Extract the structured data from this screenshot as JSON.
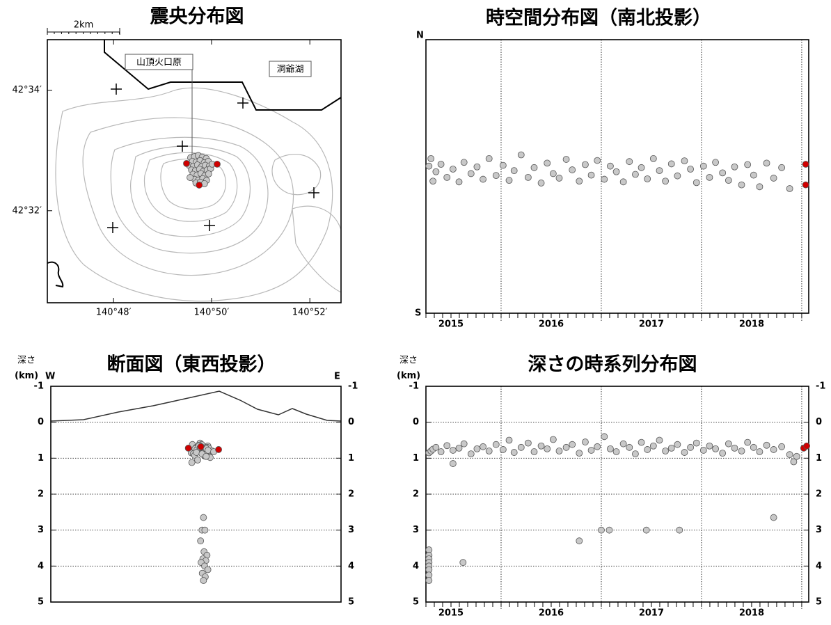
{
  "chart_data": [
    {
      "type": "scatter",
      "title": "震央分布図",
      "scale_bar_label": "2km",
      "annotations": [
        "山頂火口原",
        "洞爺湖"
      ],
      "xlim": [
        140.7775,
        140.8773
      ],
      "ylim": [
        42.5078,
        42.5807
      ],
      "xticks": [
        {
          "value": 140.8,
          "label": "140°48′"
        },
        {
          "value": 140.8333,
          "label": "140°50′"
        },
        {
          "value": 140.8667,
          "label": "140°52′"
        }
      ],
      "yticks": [
        {
          "value": 42.5333,
          "label": "42°32′"
        },
        {
          "value": 42.5667,
          "label": "42°34′"
        }
      ],
      "series": [
        {
          "color": "#c8c8c8",
          "x": [
            140.8262,
            140.8275,
            140.8288,
            140.8301,
            140.8315,
            140.8268,
            140.8281,
            140.8294,
            140.8308,
            140.8322,
            140.8258,
            140.8271,
            140.8285,
            140.8299,
            140.8312,
            140.8326,
            140.8265,
            140.8278,
            140.8292,
            140.8305,
            140.8318,
            140.833,
            140.827,
            140.8284,
            140.8297,
            140.831,
            140.8323,
            140.8276,
            140.8289,
            140.8303,
            140.8316,
            140.828,
            140.8295,
            140.8309,
            140.826,
            140.8335
          ],
          "values": [
            42.548,
            42.5483,
            42.5486,
            42.5481,
            42.5478,
            42.547,
            42.5468,
            42.5472,
            42.5466,
            42.547,
            42.5458,
            42.5456,
            42.546,
            42.5455,
            42.5459,
            42.5457,
            42.5446,
            42.5444,
            42.5448,
            42.5442,
            42.5446,
            42.545,
            42.5434,
            42.5432,
            42.5436,
            42.543,
            42.5435,
            42.542,
            42.5418,
            42.5422,
            42.5417,
            42.541,
            42.5412,
            42.5408,
            42.5425,
            42.5462
          ]
        },
        {
          "color": "#d00000",
          "x": [
            140.8248,
            140.8352,
            140.8291
          ],
          "values": [
            42.5464,
            42.5462,
            42.5404
          ]
        }
      ]
    },
    {
      "type": "scatter",
      "title": "時空間分布図（南北投影）",
      "ylabel_top": "N",
      "ylabel_bottom": "S",
      "xlim": [
        2015.25,
        2019.07
      ],
      "ylim": [
        42.5078,
        42.5807
      ],
      "xticks": [
        {
          "value": 2015.5,
          "label": "2015"
        },
        {
          "value": 2016.5,
          "label": "2016"
        },
        {
          "value": 2017.5,
          "label": "2017"
        },
        {
          "value": 2018.5,
          "label": "2018"
        }
      ],
      "year_lines": [
        2016,
        2017,
        2018,
        2019
      ],
      "series": [
        {
          "color": "#c8c8c8",
          "x": [
            2015.28,
            2015.3,
            2015.32,
            2015.35,
            2015.4,
            2015.46,
            2015.52,
            2015.58,
            2015.63,
            2015.7,
            2015.76,
            2015.82,
            2015.88,
            2015.95,
            2016.02,
            2016.08,
            2016.13,
            2016.2,
            2016.27,
            2016.33,
            2016.4,
            2016.46,
            2016.52,
            2016.58,
            2016.65,
            2016.71,
            2016.78,
            2016.84,
            2016.9,
            2016.96,
            2017.03,
            2017.09,
            2017.15,
            2017.22,
            2017.28,
            2017.34,
            2017.4,
            2017.46,
            2017.52,
            2017.58,
            2017.64,
            2017.7,
            2017.76,
            2017.83,
            2017.89,
            2017.95,
            2018.02,
            2018.08,
            2018.14,
            2018.21,
            2018.27,
            2018.33,
            2018.4,
            2018.46,
            2018.52,
            2018.58,
            2018.65,
            2018.72,
            2018.8,
            2018.88
          ],
          "values": [
            42.547,
            42.549,
            42.543,
            42.5455,
            42.5475,
            42.544,
            42.5462,
            42.5428,
            42.548,
            42.545,
            42.5468,
            42.5435,
            42.549,
            42.5445,
            42.5472,
            42.5432,
            42.5458,
            42.55,
            42.544,
            42.5466,
            42.5425,
            42.5478,
            42.545,
            42.5438,
            42.5488,
            42.546,
            42.543,
            42.5474,
            42.5446,
            42.5485,
            42.5435,
            42.547,
            42.5455,
            42.5428,
            42.5482,
            42.5448,
            42.5466,
            42.5436,
            42.549,
            42.5458,
            42.543,
            42.5476,
            42.5444,
            42.5484,
            42.5462,
            42.5426,
            42.547,
            42.544,
            42.548,
            42.5452,
            42.5432,
            42.5468,
            42.542,
            42.5474,
            42.5446,
            42.5415,
            42.5478,
            42.5438,
            42.5466,
            42.541
          ]
        },
        {
          "color": "#d00000",
          "x": [
            2019.04,
            2019.04
          ],
          "values": [
            42.5475,
            42.542
          ]
        }
      ]
    },
    {
      "type": "scatter",
      "title": "断面図（東西投影）",
      "ylabel": "深さ",
      "yunit": "(km)",
      "west_label": "W",
      "east_label": "E",
      "xlim": [
        140.7775,
        140.8773
      ],
      "ylim": [
        -1,
        5
      ],
      "y_inverted": true,
      "grid": true,
      "yticks": [
        -1,
        0,
        1,
        2,
        3,
        4,
        5
      ],
      "series": [
        {
          "color": "#c8c8c8",
          "x": [
            140.8262,
            140.8275,
            140.8288,
            140.8301,
            140.8315,
            140.8268,
            140.8281,
            140.8294,
            140.8308,
            140.8322,
            140.8258,
            140.8271,
            140.8285,
            140.8299,
            140.8312,
            140.8326,
            140.8265,
            140.8278,
            140.8292,
            140.8305,
            140.8318,
            140.833,
            140.827,
            140.8284,
            140.8297,
            140.831,
            140.8323,
            140.8276,
            140.8289,
            140.8303,
            140.8316,
            140.828,
            140.8295,
            140.8309,
            140.826,
            140.8335,
            140.83,
            140.8295,
            140.8305,
            140.829,
            140.8302,
            140.8312,
            140.8298,
            140.8308,
            140.8292,
            140.8304,
            140.8315,
            140.8296,
            140.8306,
            140.83
          ],
          "values": [
            0.62,
            0.7,
            0.58,
            0.75,
            0.66,
            0.8,
            0.68,
            0.62,
            0.72,
            0.78,
            0.85,
            0.74,
            0.64,
            0.9,
            0.7,
            0.82,
            0.88,
            0.76,
            0.68,
            0.94,
            0.72,
            0.8,
            0.92,
            0.66,
            0.86,
            0.74,
            0.98,
            0.84,
            0.7,
            0.9,
            0.78,
            1.05,
            0.88,
            0.95,
            1.12,
            0.82,
            2.65,
            3.0,
            3.0,
            3.3,
            3.6,
            3.7,
            3.8,
            3.85,
            3.9,
            4.0,
            4.1,
            4.2,
            4.3,
            4.4
          ]
        },
        {
          "color": "#d00000",
          "x": [
            140.8248,
            140.8291,
            140.8352
          ],
          "values": [
            0.72,
            0.68,
            0.76
          ]
        }
      ]
    },
    {
      "type": "scatter",
      "title": "深さの時系列分布図",
      "ylabel": "深さ",
      "yunit": "(km)",
      "xlim": [
        2015.25,
        2019.07
      ],
      "ylim": [
        -1,
        5
      ],
      "y_inverted": true,
      "grid": true,
      "yticks": [
        -1,
        0,
        1,
        2,
        3,
        4,
        5
      ],
      "xticks": [
        {
          "value": 2015.5,
          "label": "2015"
        },
        {
          "value": 2016.5,
          "label": "2016"
        },
        {
          "value": 2017.5,
          "label": "2017"
        },
        {
          "value": 2018.5,
          "label": "2018"
        }
      ],
      "year_lines": [
        2016,
        2017,
        2018,
        2019
      ],
      "series": [
        {
          "color": "#c8c8c8",
          "x": [
            2015.28,
            2015.3,
            2015.32,
            2015.35,
            2015.4,
            2015.46,
            2015.52,
            2015.58,
            2015.63,
            2015.7,
            2015.76,
            2015.82,
            2015.88,
            2015.95,
            2016.02,
            2016.08,
            2016.13,
            2016.2,
            2016.27,
            2016.33,
            2016.4,
            2016.46,
            2016.52,
            2016.58,
            2016.65,
            2016.71,
            2016.78,
            2016.84,
            2016.9,
            2016.96,
            2017.03,
            2017.09,
            2017.15,
            2017.22,
            2017.28,
            2017.34,
            2017.4,
            2017.46,
            2017.52,
            2017.58,
            2017.64,
            2017.7,
            2017.76,
            2017.83,
            2017.89,
            2017.95,
            2018.02,
            2018.08,
            2018.14,
            2018.21,
            2018.27,
            2018.33,
            2018.4,
            2018.46,
            2018.52,
            2018.58,
            2018.65,
            2018.72,
            2018.8,
            2018.88,
            2015.28,
            2015.28,
            2015.28,
            2015.28,
            2015.28,
            2015.28,
            2015.28,
            2015.28,
            2015.52,
            2015.62,
            2016.78,
            2017.0,
            2017.08,
            2017.45,
            2017.78,
            2018.72,
            2018.92,
            2018.95
          ],
          "values": [
            0.85,
            0.8,
            0.75,
            0.7,
            0.82,
            0.65,
            0.78,
            0.72,
            0.6,
            0.88,
            0.74,
            0.68,
            0.8,
            0.62,
            0.76,
            0.5,
            0.84,
            0.7,
            0.58,
            0.82,
            0.66,
            0.74,
            0.48,
            0.8,
            0.7,
            0.62,
            0.86,
            0.55,
            0.78,
            0.68,
            0.4,
            0.74,
            0.82,
            0.6,
            0.7,
            0.88,
            0.56,
            0.76,
            0.66,
            0.5,
            0.8,
            0.72,
            0.62,
            0.84,
            0.7,
            0.58,
            0.78,
            0.66,
            0.74,
            0.86,
            0.6,
            0.72,
            0.8,
            0.56,
            0.7,
            0.82,
            0.64,
            0.76,
            0.68,
            0.9,
            3.55,
            3.7,
            3.8,
            3.9,
            4.0,
            4.1,
            4.25,
            4.4,
            1.15,
            3.9,
            3.3,
            3.0,
            3.0,
            3.0,
            3.0,
            2.65,
            1.1,
            0.95
          ]
        },
        {
          "color": "#d00000",
          "x": [
            2019.02,
            2019.05
          ],
          "values": [
            0.72,
            0.66
          ]
        }
      ]
    }
  ]
}
